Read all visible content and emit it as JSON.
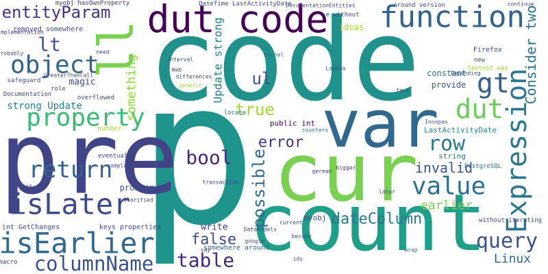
{
  "words": [
    "code",
    "p",
    "pre",
    "count",
    "cur",
    "var",
    "dut code",
    "function",
    "entityParam",
    "object",
    "property",
    "return",
    "isLater",
    "isEarlier",
    "columnName",
    "table",
    "Expression",
    "value",
    "query",
    "dut",
    "gt",
    "Consider two",
    "row",
    "bool",
    "false",
    "ul",
    "error",
    "true",
    "invalid",
    "earlier",
    "dateColumn",
    "possible",
    "Update strong",
    "something",
    "strong Update",
    "Linux",
    "LastActivityDate",
    "magic",
    "lt",
    "ll",
    "DateTime LastActivityDate",
    "PostgreSQL",
    "Firefox",
    "fastest way",
    "constant",
    "provide",
    "string",
    "myobj",
    "public int",
    "write",
    "somewhere around",
    "int GetChanges",
    "keys properties",
    "problem",
    "removed somewhere",
    "ideas",
    "kernel",
    "Lambda",
    "Innopas",
    "without iterating",
    "number",
    "eventually",
    "GreaterThanCall",
    "implementation",
    "safeguard",
    "role",
    "Documentation",
    "overflowed",
    "clarify",
    "Clarified",
    "locate",
    "Web",
    "differences",
    "generic",
    "interval",
    "around version",
    "continue",
    "myobj hasOwnProperty",
    "DocumentationEntities",
    "e without",
    "fact",
    "Depending",
    "new",
    "need",
    "google",
    "german",
    "bigger",
    "transaction",
    "counters",
    "wrap",
    "later",
    "current",
    "DataModels",
    "ids",
    "become",
    "say",
    "macro",
    "probably",
    "complains",
    "bit"
  ]
}
